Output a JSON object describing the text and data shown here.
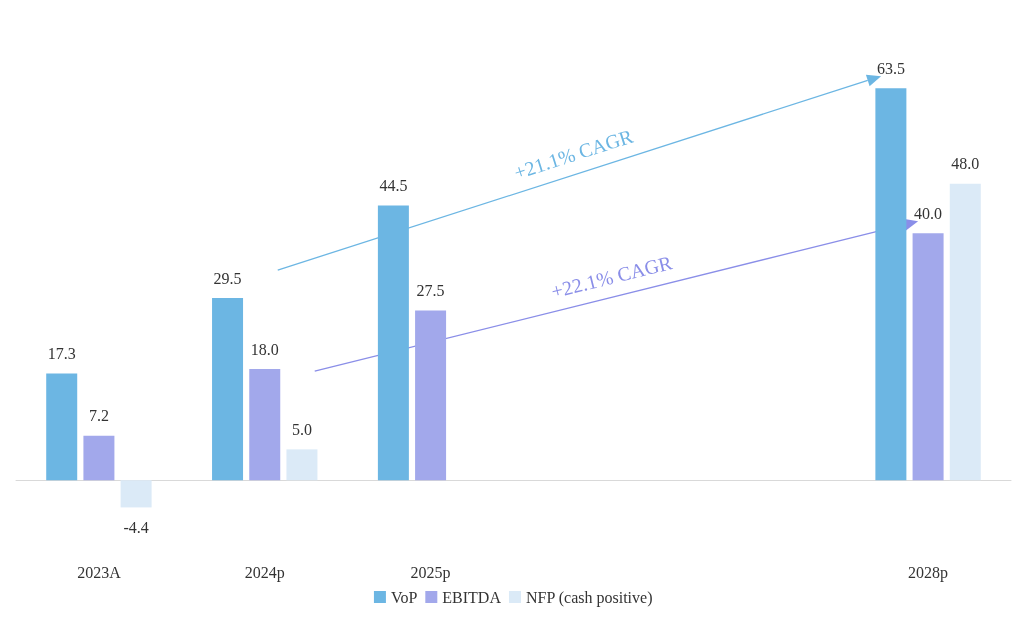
{
  "chart_data": {
    "type": "bar",
    "categories": [
      "2023A",
      "2024p",
      "2025p",
      null,
      null,
      "2028p"
    ],
    "series": [
      {
        "name": "VoP",
        "color": "#6cb6e3",
        "values": [
          17.3,
          29.5,
          44.5,
          null,
          null,
          63.5
        ],
        "value_labels": [
          "17.3",
          "29.5",
          "44.5",
          null,
          null,
          "63.5"
        ]
      },
      {
        "name": "EBITDA",
        "color": "#a2a8eb",
        "values": [
          7.2,
          18.0,
          27.5,
          null,
          null,
          40.0
        ],
        "value_labels": [
          "7.2",
          "18.0",
          "27.5",
          null,
          null,
          "40.0"
        ]
      },
      {
        "name": "NFP (cash positive)",
        "color": "#dbeaf7",
        "values": [
          -4.4,
          5.0,
          null,
          null,
          null,
          48.0
        ],
        "value_labels": [
          "-4.4",
          "5.0",
          null,
          null,
          null,
          "48.0"
        ]
      }
    ],
    "annotations": [
      "+21.1% CAGR",
      "+22.1% CAGR"
    ],
    "legend": "bottom",
    "grid": false
  }
}
